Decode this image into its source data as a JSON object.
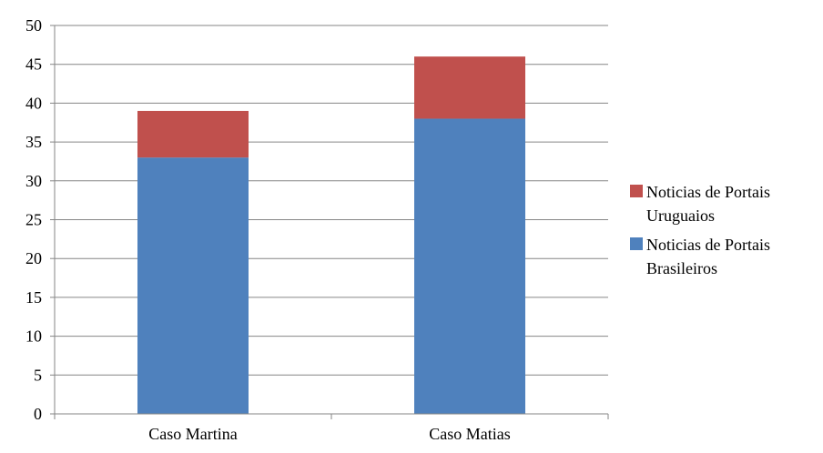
{
  "chart_data": {
    "type": "bar",
    "stacked": true,
    "categories": [
      "Caso Martina",
      "Caso Matias"
    ],
    "series": [
      {
        "name": "Noticias de Portais Brasileiros",
        "values": [
          33,
          38
        ],
        "color": "#4f81bd"
      },
      {
        "name": "Noticias de Portais Uruguaios",
        "values": [
          6,
          8
        ],
        "color": "#c0504d"
      }
    ],
    "ylim": [
      0,
      50
    ],
    "yticks": [
      0,
      5,
      10,
      15,
      20,
      25,
      30,
      35,
      40,
      45,
      50
    ],
    "grid": true,
    "legend_position": "right",
    "legend": [
      {
        "series": "Noticias de Portais Uruguaios",
        "lines": [
          "Noticias de Portais",
          "Uruguaios"
        ],
        "color": "#c0504d"
      },
      {
        "series": "Noticias de Portais Brasileiros",
        "lines": [
          "Noticias de Portais",
          "Brasileiros"
        ],
        "color": "#4f81bd"
      }
    ]
  }
}
